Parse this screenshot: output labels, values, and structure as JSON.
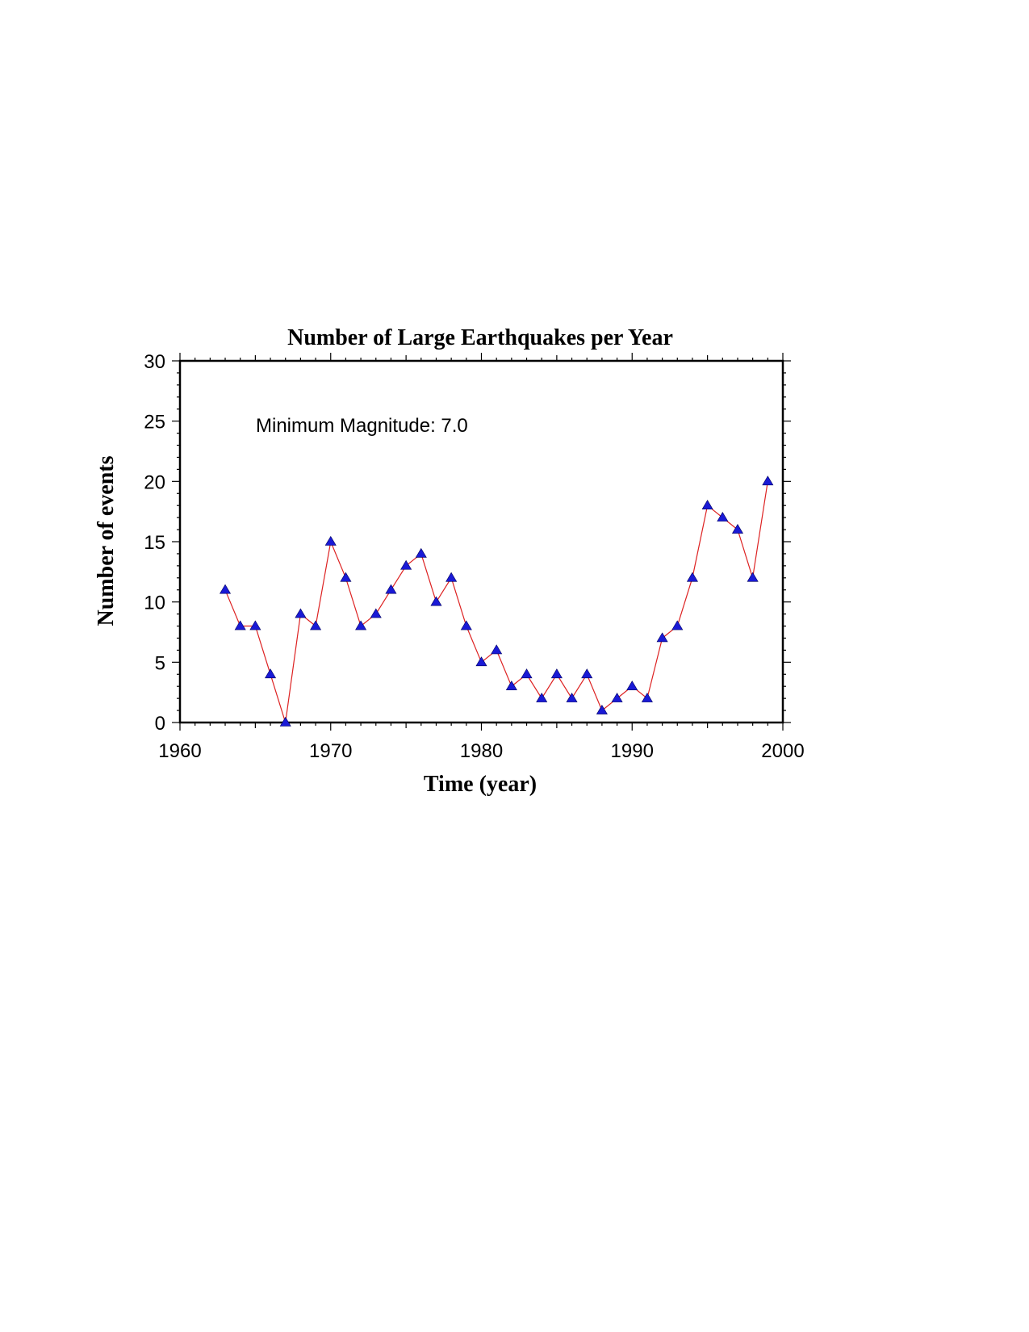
{
  "chart_data": {
    "type": "line",
    "title": "Number of Large Earthquakes per Year",
    "xlabel": "Time (year)",
    "ylabel": "Number of events",
    "annotation": "Minimum Magnitude: 7.0",
    "xlim": [
      1960,
      2000
    ],
    "ylim": [
      0,
      30
    ],
    "xticks": [
      "1960",
      "1970",
      "1980",
      "1990",
      "2000"
    ],
    "yticks": [
      "0",
      "5",
      "10",
      "15",
      "20",
      "25",
      "30"
    ],
    "grid": false,
    "line_color": "#dd2222",
    "marker_color": "#1a1ad6",
    "marker": "triangle",
    "series": [
      {
        "x": [
          1963,
          1964,
          1965,
          1966,
          1967,
          1968,
          1969,
          1970,
          1971,
          1972,
          1973,
          1974,
          1975,
          1976,
          1977,
          1978,
          1979,
          1980,
          1981,
          1982,
          1983,
          1984,
          1985,
          1986,
          1987,
          1988,
          1989,
          1990,
          1991,
          1992,
          1993,
          1994,
          1995,
          1996,
          1997,
          1998,
          1999
        ],
        "y": [
          11,
          8,
          8,
          4,
          0,
          9,
          8,
          15,
          12,
          8,
          9,
          11,
          13,
          14,
          10,
          12,
          8,
          5,
          6,
          3,
          4,
          2,
          4,
          2,
          4,
          1,
          2,
          3,
          2,
          7,
          8,
          12,
          18,
          17,
          16,
          12,
          20
        ]
      }
    ]
  }
}
